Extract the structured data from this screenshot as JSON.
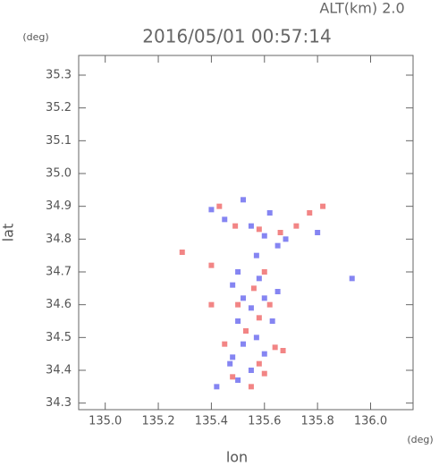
{
  "chart_data": {
    "type": "scatter",
    "title": "2016/05/01 00:57:14",
    "subtitle": "ALT(km) 2.0",
    "x_label": "lon",
    "x_unit": "(deg)",
    "y_label": "lat",
    "y_unit": "(deg)",
    "xlim": [
      134.9,
      136.16
    ],
    "ylim": [
      34.28,
      35.36
    ],
    "xticks": [
      {
        "value": 135,
        "label": "135.0"
      },
      135.2,
      135.4,
      135.6,
      135.8,
      {
        "value": 136,
        "label": "136.0"
      }
    ],
    "yticks": [
      34.3,
      34.4,
      34.5,
      34.6,
      34.7,
      34.8,
      34.9,
      {
        "value": 35,
        "label": "35.0"
      },
      35.1,
      35.2,
      35.3
    ],
    "series": [
      {
        "color": "#7070f0",
        "x": [
          135.4,
          135.45,
          135.52,
          135.55,
          135.6,
          135.65,
          135.68,
          135.62,
          135.57,
          135.5,
          135.48,
          135.52,
          135.55,
          135.5,
          135.57,
          135.6,
          135.52,
          135.48,
          135.55,
          135.5,
          135.42,
          135.6,
          135.63,
          135.47,
          135.93,
          135.8,
          135.58,
          135.65
        ],
        "values": [
          34.89,
          34.86,
          34.92,
          34.84,
          34.81,
          34.78,
          34.8,
          34.88,
          34.75,
          34.7,
          34.66,
          34.62,
          34.59,
          34.55,
          34.5,
          34.45,
          34.48,
          34.44,
          34.4,
          34.37,
          34.35,
          34.62,
          34.55,
          34.42,
          34.68,
          34.82,
          34.68,
          34.64
        ]
      },
      {
        "color": "#f07070",
        "x": [
          135.29,
          135.4,
          135.43,
          135.49,
          135.58,
          135.66,
          135.72,
          135.77,
          135.82,
          135.6,
          135.56,
          135.5,
          135.58,
          135.62,
          135.53,
          135.64,
          135.67,
          135.58,
          135.6,
          135.45,
          135.4,
          135.55,
          135.48
        ],
        "values": [
          34.76,
          34.72,
          34.9,
          34.84,
          34.83,
          34.82,
          34.84,
          34.88,
          34.9,
          34.7,
          34.65,
          34.6,
          34.56,
          34.6,
          34.52,
          34.47,
          34.46,
          34.42,
          34.39,
          34.48,
          34.6,
          34.35,
          34.38
        ]
      }
    ]
  }
}
